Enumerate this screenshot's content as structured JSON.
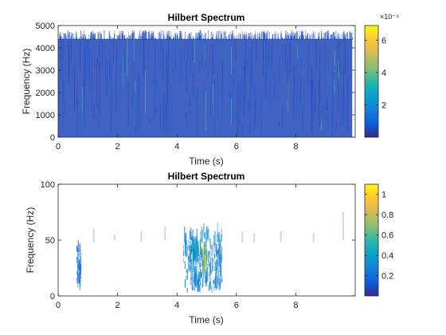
{
  "chart_data": [
    {
      "type": "heatmap",
      "title": "Hilbert Spectrum",
      "xlabel": "Time (s)",
      "ylabel": "Frequency (Hz)",
      "xlim": [
        0,
        10
      ],
      "ylim": [
        0,
        5000
      ],
      "xticks": [
        0,
        2,
        4,
        6,
        8
      ],
      "xtick_labels": [
        "0",
        "2",
        "4",
        "6",
        "8"
      ],
      "yticks": [
        0,
        1000,
        2000,
        3000,
        4000,
        5000
      ],
      "ytick_labels": [
        "0",
        "1000",
        "2000",
        "3000",
        "4000",
        "5000"
      ],
      "colorbar": {
        "min": 0,
        "max": 0.00069,
        "ticks": [
          0.0002,
          0.0004,
          0.0006
        ],
        "tick_labels": [
          "2",
          "4",
          "6"
        ],
        "exponent_label": "×10⁻⁴",
        "colormap": "parula"
      },
      "data_extent": {
        "time_range": [
          0,
          9.9
        ],
        "frequency_range": [
          0,
          4800
        ],
        "dense_band_top_hz": 4400,
        "typical_value": 5e-05,
        "peak_value": 0.00069
      },
      "grid": false
    },
    {
      "type": "heatmap",
      "title": "Hilbert Spectrum",
      "xlabel": "Time (s)",
      "ylabel": "Frequency (Hz)",
      "xlim": [
        0,
        10
      ],
      "ylim": [
        0,
        100
      ],
      "xticks": [
        0,
        2,
        4,
        6,
        8
      ],
      "xtick_labels": [
        "0",
        "2",
        "4",
        "6",
        "8"
      ],
      "yticks": [
        0,
        50,
        100
      ],
      "ytick_labels": [
        "0",
        "50",
        "100"
      ],
      "colorbar": {
        "min": 0,
        "max": 1.1,
        "ticks": [
          0.2,
          0.4,
          0.6,
          0.8,
          1.0
        ],
        "tick_labels": [
          "0.2",
          "0.4",
          "0.6",
          "0.8",
          "1"
        ],
        "colormap": "parula"
      },
      "clusters": [
        {
          "time_range": [
            0.6,
            0.75
          ],
          "frequency_range": [
            5,
            50
          ],
          "value": 0.25
        },
        {
          "time_range": [
            4.2,
            5.5
          ],
          "frequency_range": [
            3,
            65
          ],
          "value": 0.35
        },
        {
          "time_range": [
            4.85,
            5.0
          ],
          "frequency_range": [
            20,
            45
          ],
          "value": 0.95
        },
        {
          "time_range": [
            4.5,
            4.7
          ],
          "frequency_range": [
            30,
            45
          ],
          "value": 0.55
        }
      ],
      "sparse_bands": [
        {
          "time": 1.2,
          "frequency_range": [
            48,
            60
          ]
        },
        {
          "time": 1.9,
          "frequency_range": [
            50,
            55
          ]
        },
        {
          "time": 2.8,
          "frequency_range": [
            48,
            58
          ]
        },
        {
          "time": 3.6,
          "frequency_range": [
            50,
            62
          ]
        },
        {
          "time": 6.2,
          "frequency_range": [
            48,
            58
          ]
        },
        {
          "time": 6.6,
          "frequency_range": [
            48,
            56
          ]
        },
        {
          "time": 7.5,
          "frequency_range": [
            48,
            58
          ]
        },
        {
          "time": 8.6,
          "frequency_range": [
            48,
            56
          ]
        },
        {
          "time": 9.6,
          "frequency_range": [
            50,
            75
          ]
        }
      ],
      "grid": false
    }
  ]
}
